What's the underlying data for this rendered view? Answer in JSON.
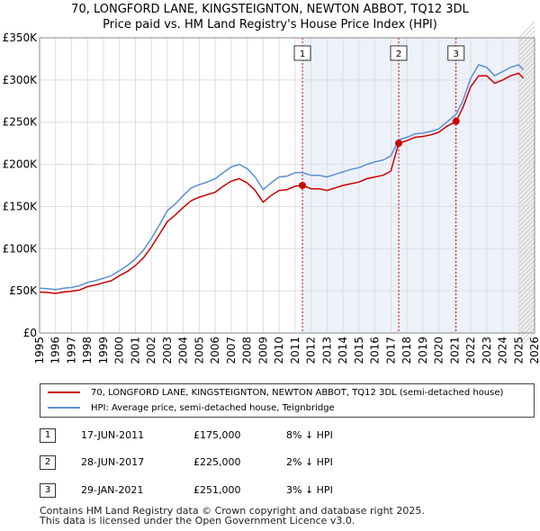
{
  "title_line1": "70, LONGFORD LANE, KINGSTEIGNTON, NEWTON ABBOT, TQ12 3DL",
  "title_line2": "Price paid vs. HM Land Registry's House Price Index (HPI)",
  "colors": {
    "price": "#cc0000",
    "hpi": "#5b8fd6",
    "shade": "#dde6f5",
    "grid": "#dddddd"
  },
  "chart_data": {
    "type": "line",
    "title": "Price paid vs. HM Land Registry's House Price Index (HPI)",
    "xlabel": "",
    "ylabel": "",
    "xlim": [
      1995,
      2026
    ],
    "ylim": [
      0,
      350000
    ],
    "x_ticks": [
      1995,
      1996,
      1997,
      1998,
      1999,
      2000,
      2001,
      2002,
      2003,
      2004,
      2005,
      2006,
      2007,
      2008,
      2009,
      2010,
      2011,
      2012,
      2013,
      2014,
      2015,
      2016,
      2017,
      2018,
      2019,
      2020,
      2021,
      2022,
      2023,
      2024,
      2025,
      2026
    ],
    "y_ticks": [
      0,
      50000,
      100000,
      150000,
      200000,
      250000,
      300000,
      350000
    ],
    "y_tick_labels": [
      "£0",
      "£50K",
      "£100K",
      "£150K",
      "£200K",
      "£250K",
      "£300K",
      "£350K"
    ],
    "series": [
      {
        "name": "HPI: Average price, semi-detached house, Teignbridge",
        "x": [
          1995,
          1995.5,
          1996,
          1996.5,
          1997,
          1997.5,
          1998,
          1998.5,
          1999,
          1999.5,
          2000,
          2000.5,
          2001,
          2001.5,
          2002,
          2002.5,
          2003,
          2003.5,
          2004,
          2004.5,
          2005,
          2005.5,
          2006,
          2006.5,
          2007,
          2007.5,
          2008,
          2008.5,
          2009,
          2009.5,
          2010,
          2010.5,
          2011,
          2011.46,
          2012,
          2012.5,
          2013,
          2013.5,
          2014,
          2014.5,
          2015,
          2015.5,
          2016,
          2016.5,
          2017,
          2017.49,
          2018,
          2018.5,
          2019,
          2019.5,
          2020,
          2020.5,
          2021,
          2021.08,
          2021.5,
          2022,
          2022.5,
          2023,
          2023.5,
          2024,
          2024.5,
          2025,
          2025.3
        ],
        "values": [
          53000,
          52500,
          51500,
          53000,
          54000,
          56000,
          60000,
          62000,
          65000,
          68000,
          74000,
          80000,
          88000,
          98000,
          112000,
          128000,
          145000,
          153000,
          163000,
          172000,
          176000,
          179000,
          183000,
          190000,
          197000,
          200000,
          195000,
          185000,
          170000,
          178000,
          185000,
          186000,
          190000,
          190000,
          187000,
          187000,
          185000,
          188000,
          191000,
          194000,
          196000,
          200000,
          203000,
          205000,
          210000,
          229000,
          232000,
          236000,
          237000,
          239000,
          242000,
          250000,
          258000,
          259000,
          275000,
          302000,
          318000,
          315000,
          305000,
          310000,
          315000,
          318000,
          312000
        ]
      },
      {
        "name": "70, LONGFORD LANE, KINGSTEIGNTON, NEWTON ABBOT, TQ12 3DL (semi-detached house)",
        "x": [
          1995,
          1995.5,
          1996,
          1996.5,
          1997,
          1997.5,
          1998,
          1998.5,
          1999,
          1999.5,
          2000,
          2000.5,
          2001,
          2001.5,
          2002,
          2002.5,
          2003,
          2003.5,
          2004,
          2004.5,
          2005,
          2005.5,
          2006,
          2006.5,
          2007,
          2007.5,
          2008,
          2008.5,
          2009,
          2009.5,
          2010,
          2010.5,
          2011,
          2011.46,
          2012,
          2012.5,
          2013,
          2013.5,
          2014,
          2014.5,
          2015,
          2015.5,
          2016,
          2016.5,
          2017,
          2017.49,
          2018,
          2018.5,
          2019,
          2019.5,
          2020,
          2020.5,
          2021,
          2021.08,
          2021.5,
          2022,
          2022.5,
          2023,
          2023.5,
          2024,
          2024.5,
          2025,
          2025.3
        ],
        "values": [
          48500,
          48000,
          47000,
          48500,
          49500,
          51000,
          55000,
          57000,
          59500,
          62000,
          68000,
          73000,
          80000,
          89000,
          102000,
          117000,
          132000,
          140000,
          149000,
          157000,
          161000,
          164000,
          167000,
          174000,
          180000,
          183000,
          178000,
          169000,
          155000,
          163000,
          169000,
          170000,
          174000,
          175000,
          171000,
          171000,
          169000,
          172000,
          175000,
          177000,
          179000,
          183000,
          185000,
          187000,
          192000,
          225000,
          228000,
          232000,
          233000,
          235000,
          238000,
          245000,
          250000,
          251000,
          267000,
          292000,
          305000,
          305000,
          296000,
          300000,
          305000,
          308000,
          302000
        ]
      }
    ],
    "markers": [
      {
        "label": "1",
        "x": 2011.46,
        "value": 175000
      },
      {
        "label": "2",
        "x": 2017.49,
        "value": 225000
      },
      {
        "label": "3",
        "x": 2021.08,
        "value": 251000
      }
    ],
    "forecast_start": 2025.0
  },
  "legend": {
    "price_label": "70, LONGFORD LANE, KINGSTEIGNTON, NEWTON ABBOT, TQ12 3DL (semi-detached house)",
    "hpi_label": "HPI: Average price, semi-detached house, Teignbridge"
  },
  "transactions": [
    {
      "num": "1",
      "date": "17-JUN-2011",
      "price": "£175,000",
      "hpi": "8% ↓ HPI"
    },
    {
      "num": "2",
      "date": "28-JUN-2017",
      "price": "£225,000",
      "hpi": "2% ↓ HPI"
    },
    {
      "num": "3",
      "date": "29-JAN-2021",
      "price": "£251,000",
      "hpi": "3% ↓ HPI"
    }
  ],
  "footer_line1": "Contains HM Land Registry data © Crown copyright and database right 2025.",
  "footer_line2": "This data is licensed under the Open Government Licence v3.0."
}
